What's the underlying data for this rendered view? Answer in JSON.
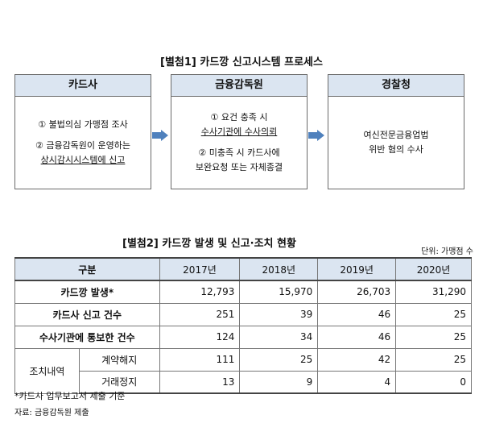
{
  "figure1": {
    "title": "[별첨1] 카드깡 신고시스템 프로세스",
    "boxes": [
      {
        "header": "카드사",
        "lines": [
          "① 불법의심 가맹점 조사",
          "② 금융감독원이 운영하는",
          "상시감시시스템에 신고"
        ]
      },
      {
        "header": "금융감독원",
        "lines": [
          "① 요건 충족 시",
          "수사기관에 수사의뢰",
          "② 미충족 시 카드사에",
          "보완요청 또는 자체종결"
        ]
      },
      {
        "header": "경찰청",
        "lines": [
          "여신전문금융업법",
          "위반 혐의 수사"
        ]
      }
    ]
  },
  "figure2": {
    "title": "[별첨2] 카드깡 발생 및 신고·조치 현황",
    "unit": "단위: 가맹점 수",
    "header": [
      "구분",
      "2017년",
      "2018년",
      "2019년",
      "2020년"
    ],
    "rows": [
      {
        "label": "카드깡 발생*",
        "values": [
          "12,793",
          "15,970",
          "26,703",
          "31,290"
        ]
      },
      {
        "label": "카드사 신고 건수",
        "values": [
          "251",
          "39",
          "46",
          "25"
        ]
      },
      {
        "label": "수사기관에 통보한 건수",
        "values": [
          "124",
          "34",
          "46",
          "25"
        ]
      }
    ],
    "group_label": "조치내역",
    "sub_rows": [
      {
        "label": "계약해지",
        "values": [
          "111",
          "25",
          "42",
          "25"
        ]
      },
      {
        "label": "거래정지",
        "values": [
          "13",
          "9",
          "4",
          "0"
        ]
      }
    ]
  },
  "notes": {
    "footnote": "*카드사 업무보고서 제출 기준",
    "source": "자료: 금융감독원 제출"
  }
}
